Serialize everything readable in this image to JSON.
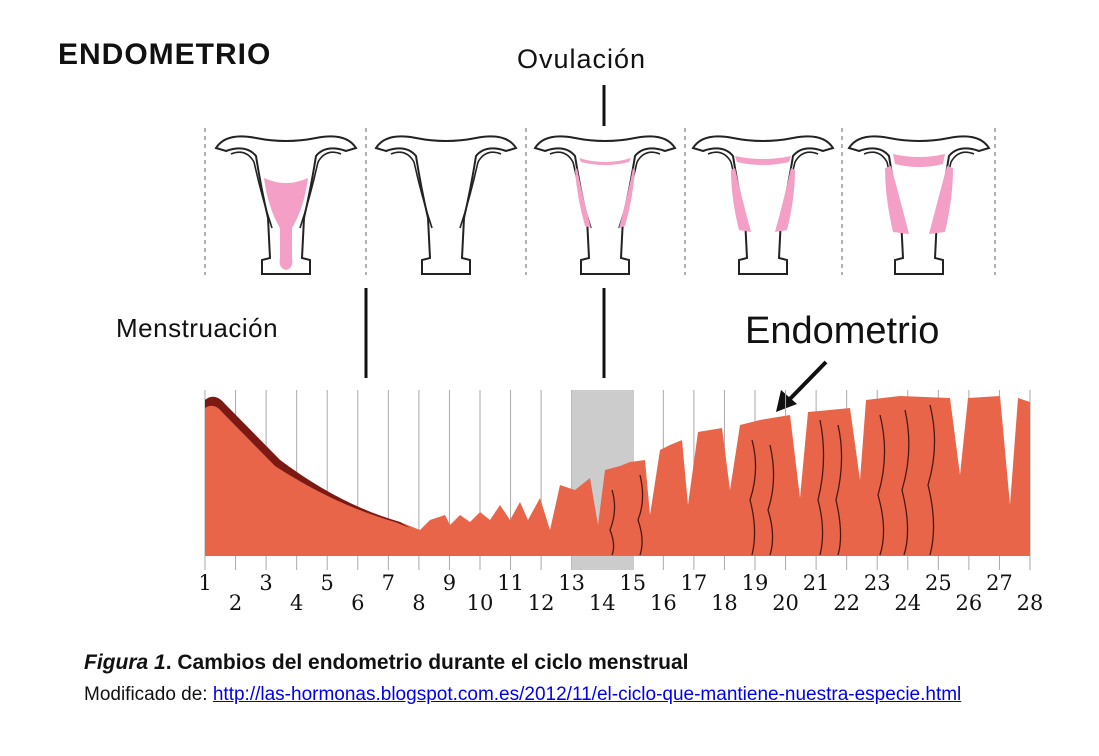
{
  "heading": "ENDOMETRIO",
  "labels": {
    "ovulation": "Ovulación",
    "menstruation": "Menstruación",
    "endometrium": "Endometrio"
  },
  "days": [
    "1",
    "2",
    "3",
    "4",
    "5",
    "6",
    "7",
    "8",
    "9",
    "10",
    "11",
    "12",
    "13",
    "14",
    "15",
    "16",
    "17",
    "18",
    "19",
    "20",
    "21",
    "22",
    "23",
    "24",
    "25",
    "26",
    "27",
    "28"
  ],
  "caption": {
    "figure_label": "Figura 1",
    "title": ". Cambios del endometrio durante el ciclo menstrual",
    "source_prefix": "Modificado de: ",
    "source_url": "http://las-hormonas.blogspot.com.es/2012/11/el-ciclo-que-mantiene-nuestra-especie.html"
  },
  "colors": {
    "endometrium": "#e8654a",
    "endometrium_dark": "#7a1a12",
    "uterus_lining": "#f39fc6",
    "ovulation_band": "#cccccc"
  }
}
